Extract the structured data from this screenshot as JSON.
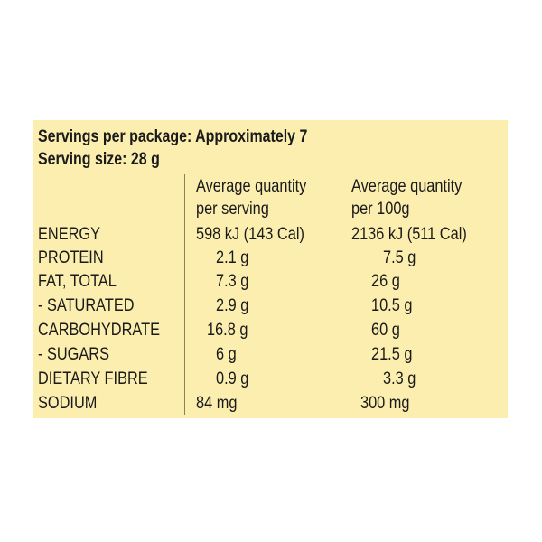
{
  "servings": {
    "per_package": "Servings per package: Approximately 7",
    "serving_size": "Serving size: 28 g"
  },
  "headers": {
    "per_serving_line1": "Average quantity",
    "per_serving_line2": "per serving",
    "per_100g_line1": "Average quantity",
    "per_100g_line2": "per 100g"
  },
  "rows": [
    {
      "name": "ENERGY",
      "per_serving": "598 kJ (143 Cal)",
      "per_100g": "2136 kJ (511 Cal)"
    },
    {
      "name": "PROTEIN",
      "per_serving": "2.1 g",
      "per_100g": "7.5 g"
    },
    {
      "name": "FAT, TOTAL",
      "per_serving": "7.3 g",
      "per_100g": "26 g"
    },
    {
      "name": "- SATURATED",
      "per_serving": "2.9 g",
      "per_100g": "10.5 g"
    },
    {
      "name": "CARBOHYDRATE",
      "per_serving": "16.8 g",
      "per_100g": "60 g"
    },
    {
      "name": "- SUGARS",
      "per_serving": "6 g",
      "per_100g": "21.5 g"
    },
    {
      "name": "DIETARY FIBRE",
      "per_serving": "0.9 g",
      "per_100g": "3.3 g"
    },
    {
      "name": "SODIUM",
      "per_serving": "84 mg",
      "per_100g": "300 mg"
    }
  ],
  "colors": {
    "panel_background": "#fbeeae",
    "text": "#1a1a1a",
    "divider": "#8a8060"
  }
}
